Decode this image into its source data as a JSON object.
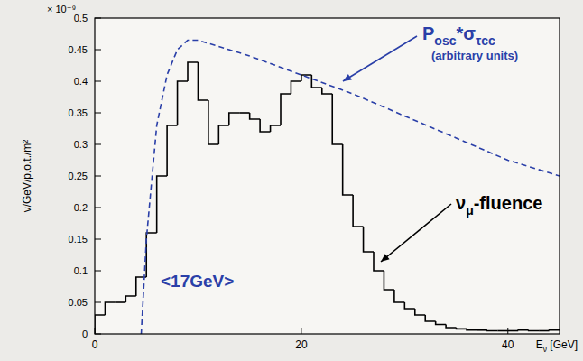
{
  "chart_data": {
    "type": "histogram",
    "y_label": "ν/GeV/p.o.t./m²",
    "y_multiplier": "× 10⁻⁹",
    "x_label_parts": [
      "E",
      "ν",
      " [GeV]"
    ],
    "xlim": [
      0,
      45
    ],
    "xticks": [
      0,
      20,
      40
    ],
    "ylim": [
      0,
      0.5
    ],
    "yticks": [
      0,
      0.05,
      0.1,
      0.15,
      0.2,
      0.25,
      0.3,
      0.35,
      0.4,
      0.45,
      0.5
    ],
    "grid": false,
    "series": [
      {
        "type": "step",
        "color": "#000000",
        "bins": [
          0,
          1,
          2,
          3,
          4,
          5,
          6,
          7,
          8,
          9,
          10,
          11,
          12,
          13,
          14,
          15,
          16,
          17,
          18,
          19,
          20,
          21,
          22,
          23,
          24,
          25,
          26,
          27,
          28,
          29,
          30,
          31,
          32,
          33,
          34,
          35,
          36,
          37,
          38,
          39,
          40,
          41,
          42,
          43,
          44,
          45
        ],
        "values": [
          0.03,
          0.05,
          0.05,
          0.06,
          0.09,
          0.16,
          0.25,
          0.33,
          0.4,
          0.43,
          0.37,
          0.3,
          0.33,
          0.35,
          0.35,
          0.34,
          0.32,
          0.33,
          0.38,
          0.4,
          0.41,
          0.39,
          0.38,
          0.3,
          0.22,
          0.17,
          0.13,
          0.1,
          0.07,
          0.05,
          0.04,
          0.03,
          0.02,
          0.015,
          0.01,
          0.008,
          0.006,
          0.006,
          0.005,
          0.005,
          0.005,
          0.006,
          0.005,
          0.005,
          0.006
        ]
      },
      {
        "type": "line",
        "line_style": "dashed",
        "color": "#2a3fa8",
        "x": [
          4.5,
          5,
          6,
          7,
          8,
          9,
          10,
          12,
          15,
          20,
          25,
          30,
          35,
          40,
          45
        ],
        "values": [
          0,
          0.15,
          0.33,
          0.41,
          0.45,
          0.465,
          0.465,
          0.455,
          0.44,
          0.41,
          0.38,
          0.345,
          0.31,
          0.275,
          0.25
        ]
      }
    ],
    "annotations": [
      {
        "parts": [
          "P",
          "osc",
          "*σ",
          "τcc"
        ],
        "color": "#2a3fa8"
      },
      {
        "parts": [
          "(arbitrary units)"
        ],
        "color": "#2a3fa8"
      },
      {
        "parts": [
          "ν",
          "μ",
          "-fluence"
        ],
        "color": "#000000"
      },
      {
        "parts": [
          "<17GeV>"
        ],
        "color": "#2a3fa8"
      }
    ]
  }
}
